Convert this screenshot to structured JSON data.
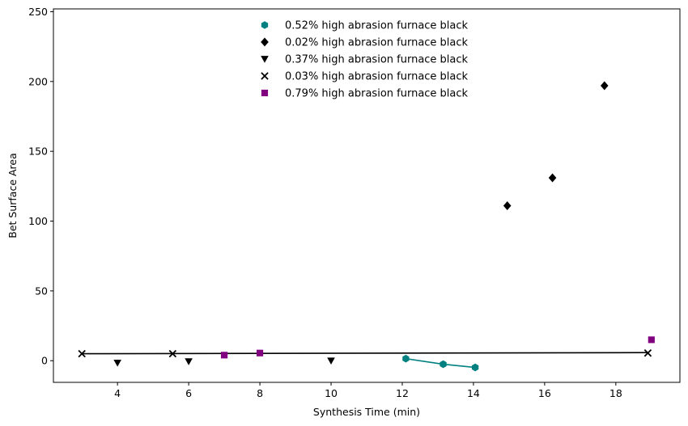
{
  "chart_data": {
    "type": "scatter",
    "xlabel": "Synthesis Time (min)",
    "ylabel": "Bet Surface Area",
    "xlim": [
      2.2,
      19.8
    ],
    "ylim": [
      -15.5,
      252
    ],
    "xticks": [
      4,
      6,
      8,
      10,
      12,
      14,
      16,
      18
    ],
    "yticks": [
      0,
      50,
      100,
      150,
      200,
      250
    ],
    "legend_position": "upper-center",
    "series": [
      {
        "name": "0.52% high abrasion furnace black",
        "marker": "hexagon",
        "color": "#008080",
        "points": [
          [
            12.1,
            1.5
          ],
          [
            13.15,
            -2.5
          ],
          [
            14.05,
            -4.8
          ]
        ],
        "line": {
          "points": [
            [
              12.1,
              1.5
            ],
            [
              13.15,
              -2.5
            ],
            [
              14.05,
              -4.8
            ]
          ],
          "color": "#008080"
        }
      },
      {
        "name": "0.02% high abrasion furnace black",
        "marker": "diamond",
        "color": "#000000",
        "points": [
          [
            14.95,
            111
          ],
          [
            16.22,
            131
          ],
          [
            17.68,
            197
          ]
        ]
      },
      {
        "name": "0.37% high abrasion furnace black",
        "marker": "triangle-down",
        "color": "#000000",
        "points": [
          [
            4.0,
            -1.5
          ],
          [
            6.0,
            -0.5
          ],
          [
            10.0,
            0.0
          ]
        ]
      },
      {
        "name": "0.03% high abrasion furnace black",
        "marker": "x",
        "color": "#000000",
        "points": [
          [
            3.0,
            5.0
          ],
          [
            5.55,
            5.0
          ],
          [
            18.9,
            5.5
          ]
        ],
        "line": {
          "points": [
            [
              3.0,
              5.0
            ],
            [
              18.9,
              5.8
            ]
          ],
          "color": "#000000"
        }
      },
      {
        "name": "0.79% high abrasion furnace black",
        "marker": "square",
        "color": "#800080",
        "points": [
          [
            7.0,
            4.0
          ],
          [
            8.0,
            5.5
          ],
          [
            19.0,
            15.0
          ]
        ]
      }
    ]
  }
}
